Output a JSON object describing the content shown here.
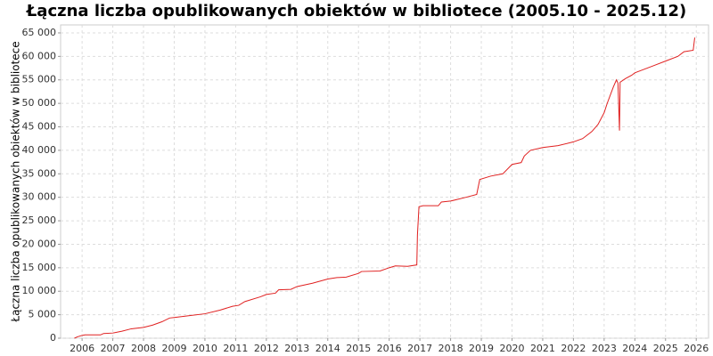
{
  "chart_data": {
    "type": "line",
    "title": "Łączna liczba opublikowanych obiektów w bibliotece (2005.10 - 2025.12)",
    "y_label": "Łączna liczba opublikowanych obiektów w bibliotece",
    "color": "#e02020",
    "grid": true,
    "x": [
      2005.75,
      2005.85,
      2006.0,
      2006.1,
      2006.6,
      2006.7,
      2007.0,
      2007.3,
      2007.6,
      2008.0,
      2008.3,
      2008.6,
      2008.85,
      2009.0,
      2009.5,
      2010.0,
      2010.5,
      2010.9,
      2011.1,
      2011.3,
      2011.8,
      2012.0,
      2012.3,
      2012.4,
      2012.8,
      2013.0,
      2013.5,
      2014.0,
      2014.3,
      2014.6,
      2015.0,
      2015.1,
      2015.7,
      2016.0,
      2016.2,
      2016.6,
      2016.9,
      2016.92,
      2016.97,
      2017.1,
      2017.6,
      2017.7,
      2018.0,
      2018.5,
      2018.85,
      2018.95,
      2019.3,
      2019.7,
      2020.0,
      2020.3,
      2020.4,
      2020.6,
      2021.0,
      2021.5,
      2022.0,
      2022.3,
      2022.6,
      2022.8,
      2023.0,
      2023.1,
      2023.3,
      2023.4,
      2023.45,
      2023.5,
      2023.52,
      2023.7,
      2023.9,
      2024.0,
      2024.2,
      2024.6,
      2025.0,
      2025.4,
      2025.6,
      2025.9,
      2025.95
    ],
    "values": [
      0,
      300,
      600,
      700,
      700,
      1000,
      1100,
      1500,
      2000,
      2300,
      2800,
      3500,
      4300,
      4400,
      4800,
      5200,
      6000,
      6800,
      7000,
      7800,
      8800,
      9300,
      9600,
      10300,
      10400,
      11000,
      11700,
      12600,
      12900,
      13000,
      13800,
      14200,
      14300,
      15000,
      15400,
      15300,
      15600,
      22000,
      28000,
      28200,
      28200,
      29000,
      29200,
      30000,
      30600,
      33800,
      34500,
      35000,
      37000,
      37400,
      38800,
      40000,
      40600,
      41000,
      41800,
      42500,
      44000,
      45500,
      48000,
      50000,
      53500,
      55000,
      54300,
      44200,
      54500,
      55300,
      56000,
      56500,
      57000,
      58000,
      59000,
      60000,
      61000,
      61300,
      64000
    ],
    "xlim": [
      2005.3,
      2026.4
    ],
    "xticks": [
      2006,
      2007,
      2008,
      2009,
      2010,
      2011,
      2012,
      2013,
      2014,
      2015,
      2016,
      2017,
      2018,
      2019,
      2020,
      2021,
      2022,
      2023,
      2024,
      2025,
      2026
    ],
    "ylim": [
      0,
      66700
    ],
    "yticks": [
      0,
      {
        "value": 5000,
        "label": "5 000"
      },
      {
        "value": 10000,
        "label": "10 000"
      },
      {
        "value": 15000,
        "label": "15 000"
      },
      {
        "value": 20000,
        "label": "20 000"
      },
      {
        "value": 25000,
        "label": "25 000"
      },
      {
        "value": 30000,
        "label": "30 000"
      },
      {
        "value": 35000,
        "label": "35 000"
      },
      {
        "value": 40000,
        "label": "40 000"
      },
      {
        "value": 45000,
        "label": "45 000"
      },
      {
        "value": 50000,
        "label": "50 000"
      },
      {
        "value": 55000,
        "label": "55 000"
      },
      {
        "value": 60000,
        "label": "60 000"
      },
      {
        "value": 65000,
        "label": "65 000"
      }
    ]
  }
}
